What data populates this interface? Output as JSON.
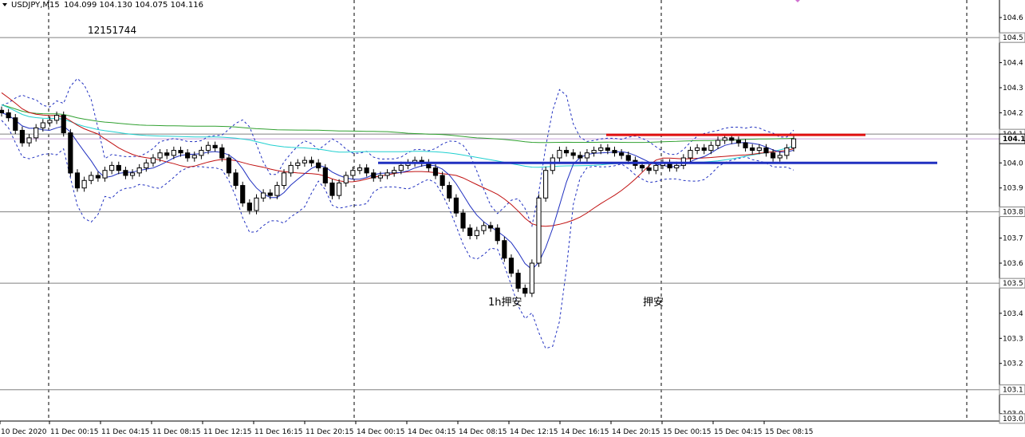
{
  "header": {
    "symbol": "USDJPY,M15",
    "ohlc": "104.099 104.130 104.075 104.116"
  },
  "account_label": "12151744",
  "annotations": [
    {
      "text": "1h押安",
      "x": "14 Dec 10:45",
      "y": 103.455
    },
    {
      "text": "押安",
      "x": "15 Dec 00:00",
      "y": 103.455
    }
  ],
  "chart_data": {
    "type": "candlestick",
    "title": "",
    "symbol": "USDJPY",
    "timeframe": "M15",
    "xlabel": "",
    "ylabel": "",
    "ylim": [
      102.99,
      104.67
    ],
    "grid": false,
    "x_tick_labels": [
      "10 Dec 2020",
      "11 Dec 00:15",
      "11 Dec 04:15",
      "11 Dec 08:15",
      "11 Dec 12:15",
      "11 Dec 16:15",
      "11 Dec 20:15",
      "14 Dec 00:15",
      "14 Dec 04:15",
      "14 Dec 08:15",
      "14 Dec 12:15",
      "14 Dec 16:15",
      "14 Dec 20:15",
      "15 Dec 00:15",
      "15 Dec 04:15",
      "15 Dec 08:15"
    ],
    "y_tick_labels": [
      "104.6",
      "104.4",
      "104.3",
      "104.2",
      "104.0",
      "103.9",
      "103.7",
      "103.6",
      "103.4",
      "103.3",
      "103.2",
      "103.1",
      "103.0"
    ],
    "price_flags": [
      {
        "label": "104.5",
        "value": 104.52,
        "style": "level"
      },
      {
        "label": "104.1",
        "value": 104.135,
        "style": "level"
      },
      {
        "label": "104.1",
        "value": 104.116,
        "style": "current"
      },
      {
        "label": "103.8",
        "value": 103.825,
        "style": "level"
      },
      {
        "label": "103.5",
        "value": 103.54,
        "style": "level"
      },
      {
        "label": "103.1",
        "value": 103.115,
        "style": "level"
      },
      {
        "label": "103.0",
        "value": 103.0,
        "style": "level"
      }
    ],
    "session_separators": [
      "11 Dec 00:00",
      "14 Dec 00:00",
      "15 Dec 00:00"
    ],
    "horizontal_levels": [
      {
        "value": 104.52,
        "color": "#808080"
      },
      {
        "value": 104.135,
        "color": "#808080"
      },
      {
        "value": 103.825,
        "color": "#808080"
      },
      {
        "value": 103.54,
        "color": "#808080"
      },
      {
        "value": 103.115,
        "color": "#808080"
      }
    ],
    "drawn_lines": [
      {
        "color": "#e01010",
        "value": 104.132,
        "from": "14 Dec 17:00",
        "to": "15 Dec 11:00"
      },
      {
        "color": "#2030c0",
        "value": 104.02,
        "from": "14 Dec 01:00",
        "to": "15 Dec 14:00"
      }
    ],
    "close_series": [
      104.22,
      104.2,
      104.15,
      104.1,
      104.12,
      104.16,
      104.18,
      104.19,
      104.21,
      104.14,
      103.98,
      103.92,
      103.95,
      103.97,
      103.96,
      103.99,
      104.01,
      103.99,
      103.97,
      103.98,
      104.0,
      104.02,
      104.04,
      104.06,
      104.05,
      104.07,
      104.06,
      104.04,
      104.05,
      104.07,
      104.09,
      104.08,
      104.04,
      103.98,
      103.93,
      103.86,
      103.83,
      103.88,
      103.9,
      103.89,
      103.93,
      103.98,
      104.01,
      104.02,
      104.03,
      104.02,
      104.0,
      103.94,
      103.89,
      103.94,
      103.97,
      103.99,
      104.0,
      103.98,
      103.96,
      103.97,
      103.98,
      103.99,
      104.01,
      104.02,
      104.03,
      104.02,
      104.0,
      103.97,
      103.93,
      103.88,
      103.82,
      103.76,
      103.73,
      103.75,
      103.77,
      103.76,
      103.71,
      103.64,
      103.58,
      103.52,
      103.5,
      103.62,
      103.88,
      103.99,
      104.04,
      104.07,
      104.06,
      104.05,
      104.04,
      104.06,
      104.07,
      104.08,
      104.07,
      104.06,
      104.05,
      104.03,
      104.01,
      104.0,
      103.99,
      104.01,
      104.02,
      104.0,
      104.01,
      104.04,
      104.07,
      104.08,
      104.07,
      104.09,
      104.11,
      104.12,
      104.11,
      104.1,
      104.08,
      104.07,
      104.08,
      104.06,
      104.04,
      104.05,
      104.08,
      104.116
    ]
  }
}
